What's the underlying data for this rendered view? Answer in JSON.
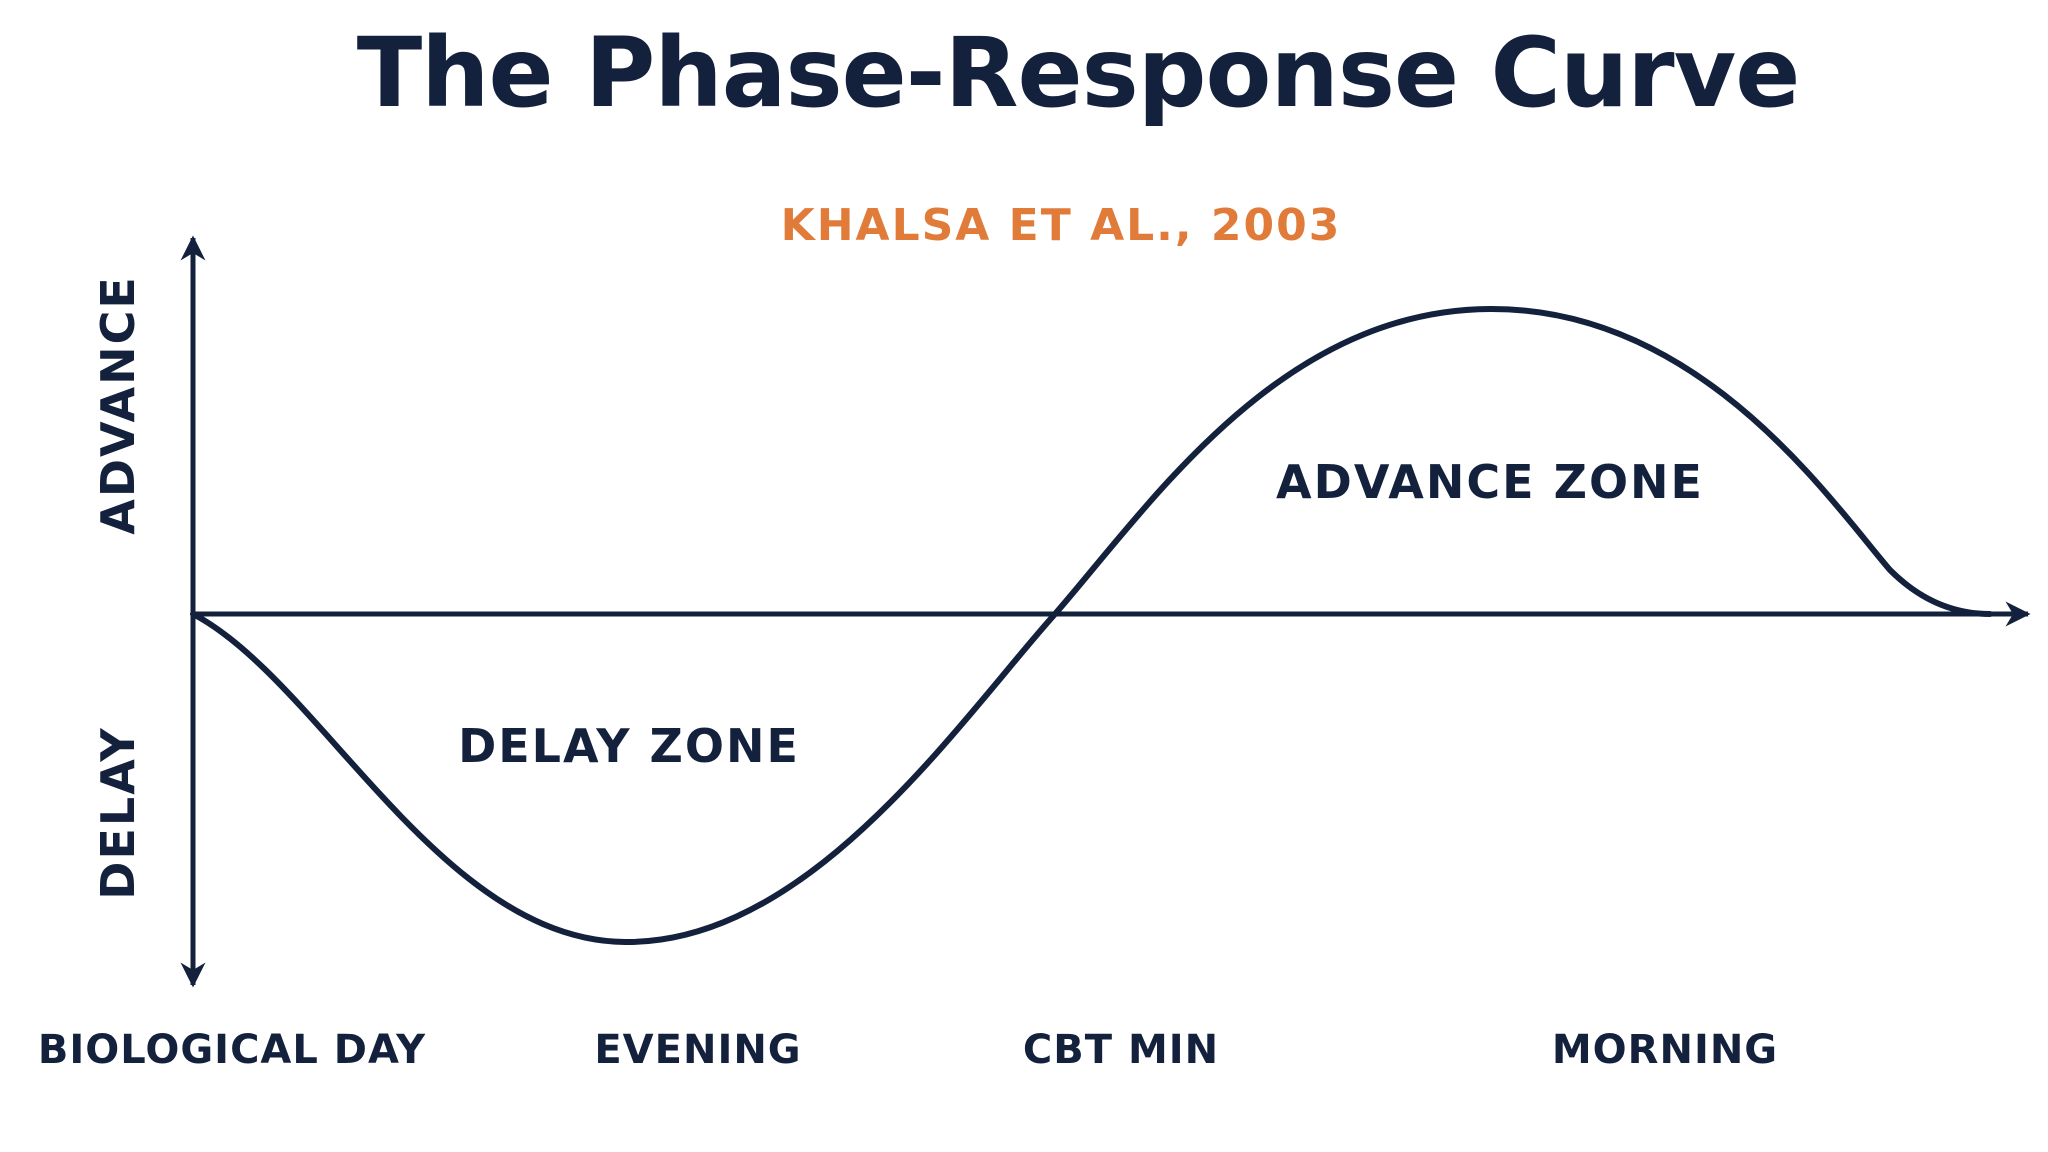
{
  "title": "The Phase-Response Curve",
  "subtitle": "KHALSA ET AL., 2003",
  "colors": {
    "ink": "#14213d",
    "accent": "#e07b39",
    "background": "#ffffff"
  },
  "y_axis": {
    "top_label": "ADVANCE",
    "bottom_label": "DELAY"
  },
  "zones": {
    "delay": "DELAY ZONE",
    "advance": "ADVANCE ZONE"
  },
  "x_labels": [
    "BIOLOGICAL DAY",
    "EVENING",
    "CBT MIN",
    "MORNING"
  ]
}
